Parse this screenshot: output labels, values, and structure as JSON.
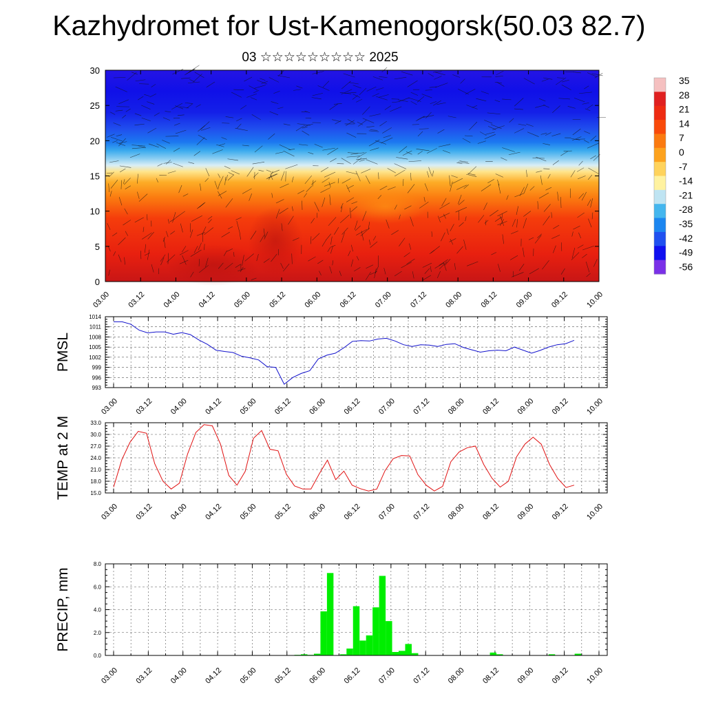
{
  "header": {
    "title": "Kazhydromet for Ust-Kamenogorsk(50.03 82.7)",
    "subtitle": "03 ☆☆☆☆☆☆☆☆☆ 2025"
  },
  "time_labels": [
    "03.00",
    "03.12",
    "04.00",
    "04.12",
    "05.00",
    "05.12",
    "06.00",
    "06.12",
    "07.00",
    "07.12",
    "08.00",
    "08.12",
    "09.00",
    "09.12",
    "10.00"
  ],
  "chart_data": [
    {
      "name": "cross-section",
      "type": "heatmap",
      "x": [
        "03.00",
        "03.12",
        "04.00",
        "04.12",
        "05.00",
        "05.12",
        "06.00",
        "06.12",
        "07.00",
        "07.12",
        "08.00",
        "08.12",
        "09.00",
        "09.12",
        "10.00"
      ],
      "ylim": [
        0,
        30
      ],
      "y_ticks": [
        0,
        5,
        10,
        15,
        20,
        25,
        30
      ],
      "colorbar": {
        "labels": [
          "35",
          "28",
          "21",
          "14",
          "7",
          "0",
          "-7",
          "-14",
          "-21",
          "-28",
          "-35",
          "-42",
          "-49",
          "-56"
        ],
        "colors": [
          "#f5c0c0",
          "#e02020",
          "#ee2b12",
          "#f94a0a",
          "#fb7a10",
          "#fda21e",
          "#ffd35c",
          "#fff2a0",
          "#bfe4f2",
          "#44b6ee",
          "#1c86f0",
          "#2050f0",
          "#1010f0",
          "#7a30e8"
        ]
      },
      "grid": false
    },
    {
      "name": "pmsl",
      "type": "line",
      "ylabel": "PMSL",
      "ylim": [
        993,
        1014
      ],
      "y_ticks": [
        993,
        996,
        999,
        1002,
        1005,
        1008,
        1011,
        1014
      ],
      "color": "#1010cc",
      "values": [
        1012.5,
        1012.5,
        1011.8,
        1010.0,
        1009.2,
        1009.5,
        1009.5,
        1008.8,
        1009.3,
        1008.7,
        1007.1,
        1005.8,
        1004.1,
        1003.7,
        1003.4,
        1002.3,
        1001.8,
        1001.2,
        999.2,
        999.0,
        994.0,
        996.0,
        997.2,
        998.0,
        1001.5,
        1002.6,
        1003.2,
        1004.8,
        1006.7,
        1006.9,
        1006.8,
        1007.4,
        1007.6,
        1006.8,
        1005.7,
        1005.2,
        1005.7,
        1005.6,
        1005.2,
        1005.8,
        1006.0,
        1004.9,
        1004.2,
        1003.5,
        1003.9,
        1004.1,
        1003.9,
        1005.0,
        1004.1,
        1003.2,
        1004.0,
        1005.0,
        1005.7,
        1006.0,
        1007.0
      ],
      "grid": true
    },
    {
      "name": "temp",
      "type": "line",
      "ylabel": "TEMP at 2 M",
      "ylim": [
        15.0,
        33.0
      ],
      "y_ticks": [
        15.0,
        18.0,
        21.0,
        24.0,
        27.0,
        30.0,
        33.0
      ],
      "color": "#e01010",
      "values": [
        16.5,
        23.5,
        28.0,
        30.8,
        30.3,
        22.5,
        18.0,
        16.0,
        17.5,
        25.0,
        30.5,
        32.5,
        32.2,
        27.5,
        19.5,
        17.0,
        20.5,
        29.0,
        31.0,
        26.2,
        25.8,
        19.8,
        16.8,
        16.0,
        16.0,
        19.9,
        23.4,
        18.4,
        20.6,
        17.0,
        16.1,
        15.5,
        16.0,
        20.7,
        23.8,
        24.6,
        24.5,
        19.7,
        17.0,
        15.5,
        16.7,
        23.0,
        25.5,
        26.6,
        27.0,
        22.3,
        18.8,
        16.5,
        18.0,
        24.3,
        27.5,
        29.3,
        27.5,
        22.3,
        18.7,
        16.4,
        17.0
      ],
      "grid": true
    },
    {
      "name": "precip",
      "type": "bar",
      "ylabel": "PRECIP, mm",
      "ylim": [
        0.0,
        8.0
      ],
      "y_ticks": [
        0.0,
        2.0,
        4.0,
        6.0,
        8.0
      ],
      "color": "#00ee00",
      "values": [
        0,
        0,
        0,
        0,
        0,
        0,
        0,
        0,
        0,
        0,
        0,
        0,
        0,
        0,
        0,
        0,
        0,
        0,
        0,
        0,
        0,
        0,
        0,
        0,
        0,
        0,
        0,
        0,
        0,
        0.05,
        0.1,
        0.05,
        0.15,
        3.85,
        7.2,
        0,
        0.1,
        0.6,
        4.3,
        1.3,
        1.75,
        4.2,
        6.95,
        3.0,
        0.3,
        0.4,
        1.0,
        0.2,
        0,
        0,
        0,
        0,
        0,
        0,
        0,
        0,
        0,
        0,
        0,
        0.25,
        0.1,
        0,
        0,
        0,
        0,
        0,
        0,
        0,
        0.1,
        0,
        0,
        0,
        0.15,
        0,
        0,
        0,
        0
      ],
      "grid": true
    }
  ]
}
